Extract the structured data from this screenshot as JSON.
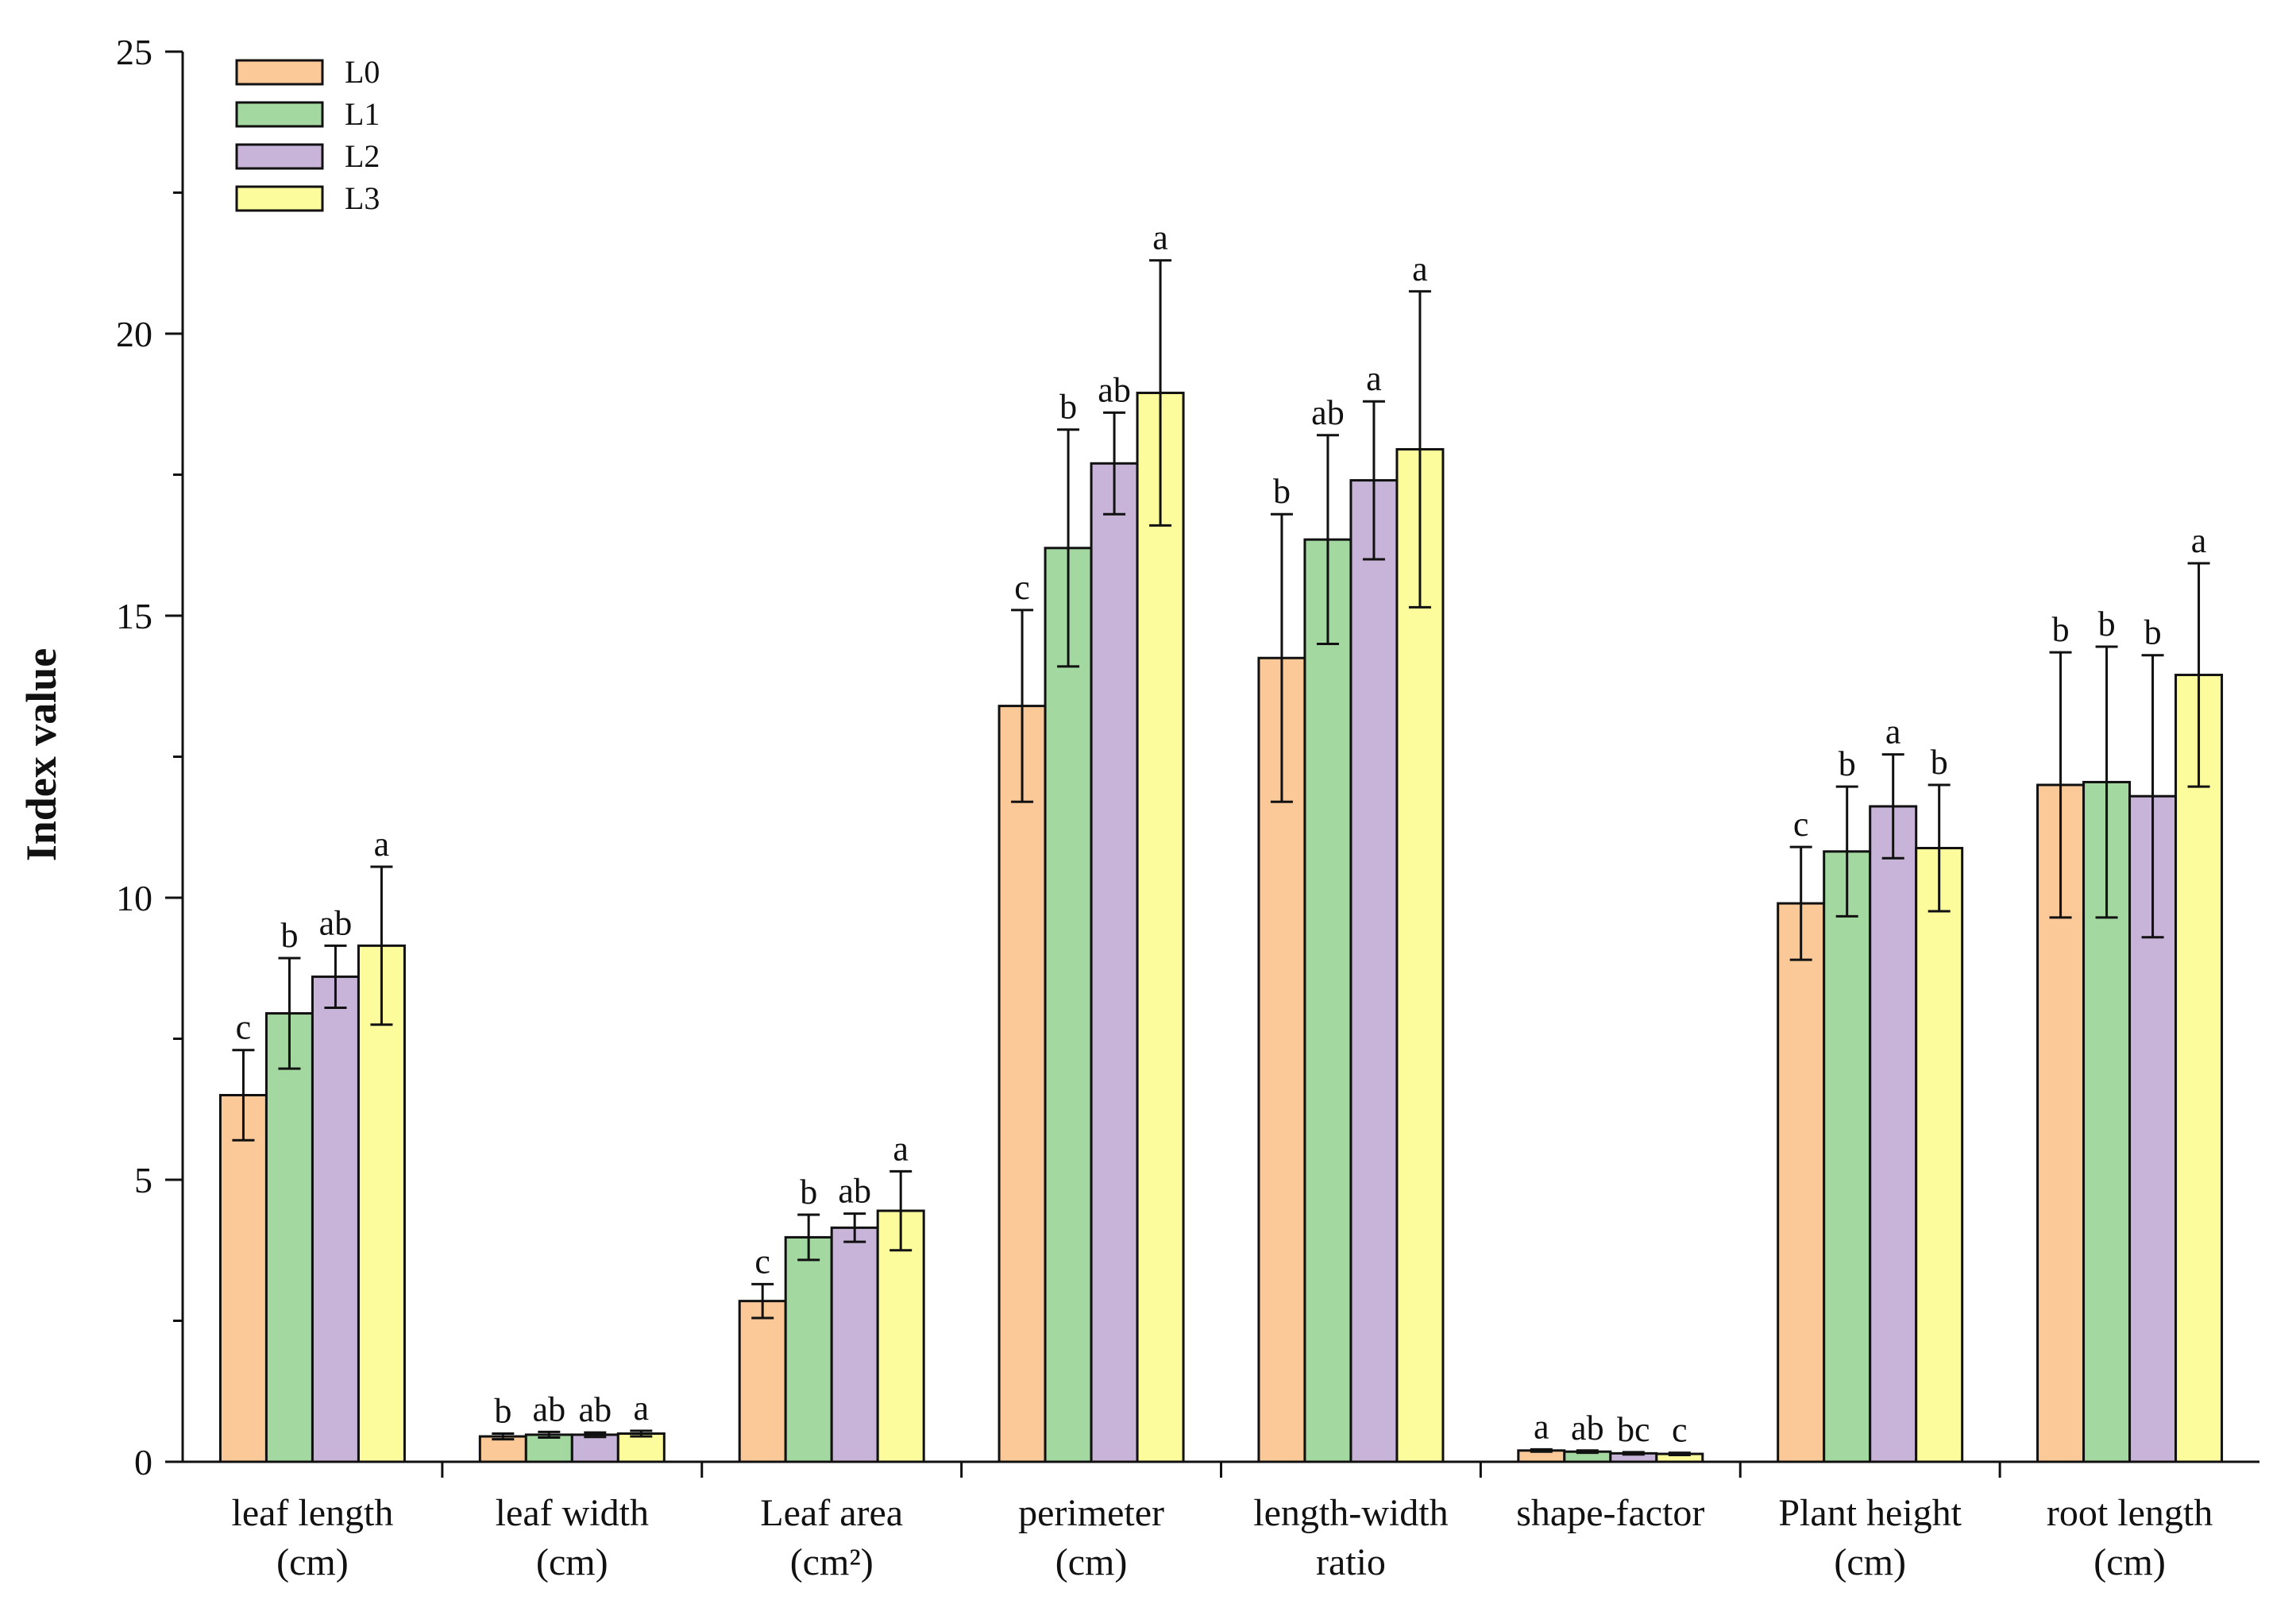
{
  "chart_data": {
    "type": "bar",
    "title": "",
    "xlabel": "",
    "ylabel": "Index value",
    "ylim": [
      0,
      25
    ],
    "yticks": [
      "0",
      "5",
      "10",
      "15",
      "20",
      "25"
    ],
    "grid": false,
    "legend_position": "top-left",
    "categories": [
      [
        "leaf length",
        "(cm)"
      ],
      [
        "leaf width",
        "(cm)"
      ],
      [
        "Leaf area",
        "(cm²)"
      ],
      [
        "perimeter",
        "(cm)"
      ],
      [
        "length-width",
        "ratio"
      ],
      [
        "shape-factor",
        ""
      ],
      [
        "Plant height",
        "(cm)"
      ],
      [
        "root length",
        "(cm)"
      ]
    ],
    "series": [
      {
        "name": "L0",
        "color": "#FBC898",
        "values": [
          6.5,
          0.45,
          2.85,
          13.4,
          14.25,
          0.2,
          9.9,
          12.0
        ],
        "errors": [
          0.8,
          0.05,
          0.3,
          1.7,
          2.55,
          0.02,
          1.0,
          2.35
        ],
        "labels": [
          "c",
          "b",
          "c",
          "c",
          "b",
          "a",
          "c",
          "b"
        ]
      },
      {
        "name": "L1",
        "color": "#A3D8A0",
        "values": [
          7.95,
          0.48,
          3.98,
          16.2,
          16.35,
          0.18,
          10.82,
          12.05
        ],
        "errors": [
          0.98,
          0.05,
          0.4,
          2.1,
          1.85,
          0.02,
          1.15,
          2.4
        ],
        "labels": [
          "b",
          "ab",
          "b",
          "b",
          "ab",
          "ab",
          "b",
          "b"
        ]
      },
      {
        "name": "L2",
        "color": "#C7B4D8",
        "values": [
          8.6,
          0.48,
          4.15,
          17.7,
          17.4,
          0.15,
          11.62,
          11.8
        ],
        "errors": [
          0.55,
          0.04,
          0.25,
          0.9,
          1.4,
          0.02,
          0.92,
          2.5
        ],
        "labels": [
          "ab",
          "ab",
          "ab",
          "ab",
          "a",
          "bc",
          "a",
          "b"
        ]
      },
      {
        "name": "L3",
        "color": "#FDFC9D",
        "values": [
          9.15,
          0.5,
          4.45,
          18.95,
          17.95,
          0.14,
          10.88,
          13.95
        ],
        "errors": [
          1.4,
          0.05,
          0.7,
          2.35,
          2.8,
          0.02,
          1.12,
          1.98
        ],
        "labels": [
          "a",
          "a",
          "a",
          "a",
          "a",
          "c",
          "b",
          "a"
        ]
      }
    ]
  }
}
